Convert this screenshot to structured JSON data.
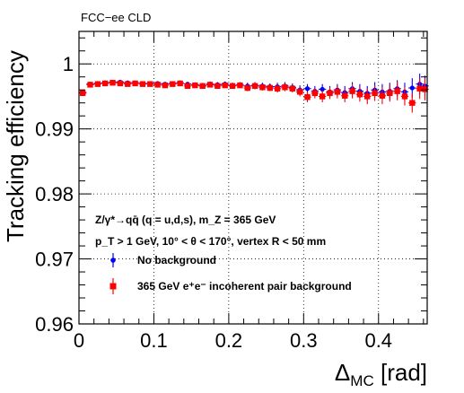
{
  "corner_label": "FCC−ee CLD",
  "annotations": [
    "Z/γ*→qq̄ (q = u,d,s), m_Z = 365 GeV",
    "p_T > 1 GeV, 10° < θ < 170°, vertex R < 50 mm"
  ],
  "chart_data": {
    "type": "scatter",
    "xlabel": "ΔMC [rad]",
    "ylabel": "Tracking efficiency",
    "xlim": [
      0,
      0.465
    ],
    "ylim": [
      0.96,
      1.005
    ],
    "xticks": [
      0,
      0.1,
      0.2,
      0.3,
      0.4
    ],
    "yticks": [
      0.96,
      0.97,
      0.98,
      0.99,
      1
    ],
    "xtick_labels": [
      "0",
      "0.1",
      "0.2",
      "0.3",
      "0.4"
    ],
    "ytick_labels": [
      "0.96",
      "0.97",
      "0.98",
      "0.99",
      "1"
    ],
    "grid": true,
    "legend_position": "bottom-left",
    "series": [
      {
        "name": "No background",
        "color": "#0000ff",
        "marker": "circle",
        "x": [
          0.005,
          0.015,
          0.025,
          0.035,
          0.045,
          0.055,
          0.065,
          0.075,
          0.085,
          0.095,
          0.105,
          0.115,
          0.125,
          0.135,
          0.145,
          0.155,
          0.165,
          0.175,
          0.185,
          0.195,
          0.205,
          0.215,
          0.225,
          0.235,
          0.245,
          0.255,
          0.265,
          0.275,
          0.285,
          0.295,
          0.305,
          0.315,
          0.325,
          0.335,
          0.345,
          0.355,
          0.365,
          0.375,
          0.385,
          0.395,
          0.405,
          0.415,
          0.425,
          0.435,
          0.445,
          0.455,
          0.462
        ],
        "y": [
          0.9956,
          0.9969,
          0.997,
          0.9971,
          0.9972,
          0.9972,
          0.9971,
          0.9971,
          0.997,
          0.997,
          0.997,
          0.9969,
          0.997,
          0.9971,
          0.9969,
          0.9968,
          0.9967,
          0.9969,
          0.9968,
          0.9969,
          0.9967,
          0.9968,
          0.9966,
          0.9967,
          0.9966,
          0.9965,
          0.9965,
          0.9966,
          0.9964,
          0.996,
          0.9962,
          0.9958,
          0.9961,
          0.9957,
          0.996,
          0.9956,
          0.9962,
          0.9958,
          0.9955,
          0.996,
          0.9957,
          0.9958,
          0.9962,
          0.9957,
          0.9963,
          0.9969,
          0.9966
        ],
        "err": [
          0.0004,
          0.0002,
          0.0002,
          0.0002,
          0.0002,
          0.0002,
          0.0002,
          0.0002,
          0.0002,
          0.0002,
          0.0003,
          0.0003,
          0.0003,
          0.0003,
          0.0003,
          0.0003,
          0.0003,
          0.0004,
          0.0004,
          0.0004,
          0.0004,
          0.0004,
          0.0005,
          0.0005,
          0.0005,
          0.0005,
          0.0006,
          0.0006,
          0.0006,
          0.0007,
          0.0007,
          0.0008,
          0.0008,
          0.0009,
          0.0009,
          0.001,
          0.001,
          0.0011,
          0.0011,
          0.0012,
          0.0012,
          0.0013,
          0.0013,
          0.0014,
          0.0015,
          0.0016,
          0.0016
        ]
      },
      {
        "name": "365 GeV e⁺e⁻ incoherent pair background",
        "color": "#ff0000",
        "marker": "square",
        "x": [
          0.005,
          0.015,
          0.025,
          0.035,
          0.045,
          0.055,
          0.065,
          0.075,
          0.085,
          0.095,
          0.105,
          0.115,
          0.125,
          0.135,
          0.145,
          0.155,
          0.165,
          0.175,
          0.185,
          0.195,
          0.205,
          0.215,
          0.225,
          0.235,
          0.245,
          0.255,
          0.265,
          0.275,
          0.285,
          0.295,
          0.305,
          0.315,
          0.325,
          0.335,
          0.345,
          0.355,
          0.365,
          0.375,
          0.385,
          0.395,
          0.405,
          0.415,
          0.425,
          0.435,
          0.445,
          0.455,
          0.462
        ],
        "y": [
          0.9955,
          0.9968,
          0.9969,
          0.997,
          0.9971,
          0.997,
          0.9969,
          0.997,
          0.9969,
          0.9969,
          0.9968,
          0.9967,
          0.9969,
          0.997,
          0.9966,
          0.9967,
          0.9966,
          0.9968,
          0.9966,
          0.9967,
          0.9966,
          0.9967,
          0.9963,
          0.9966,
          0.9964,
          0.9963,
          0.9962,
          0.9964,
          0.9962,
          0.9957,
          0.9949,
          0.9955,
          0.995,
          0.9955,
          0.9957,
          0.9951,
          0.9958,
          0.9953,
          0.995,
          0.9955,
          0.9951,
          0.9955,
          0.9958,
          0.995,
          0.994,
          0.9962,
          0.9961
        ],
        "err": [
          0.0004,
          0.0002,
          0.0002,
          0.0002,
          0.0002,
          0.0002,
          0.0002,
          0.0002,
          0.0002,
          0.0002,
          0.0003,
          0.0003,
          0.0003,
          0.0003,
          0.0003,
          0.0003,
          0.0003,
          0.0004,
          0.0004,
          0.0004,
          0.0004,
          0.0004,
          0.0005,
          0.0005,
          0.0005,
          0.0005,
          0.0006,
          0.0006,
          0.0006,
          0.0007,
          0.0008,
          0.0008,
          0.0009,
          0.0009,
          0.001,
          0.001,
          0.0011,
          0.0011,
          0.0012,
          0.0012,
          0.0013,
          0.0013,
          0.0014,
          0.0014,
          0.0015,
          0.0016,
          0.0017
        ]
      }
    ]
  }
}
